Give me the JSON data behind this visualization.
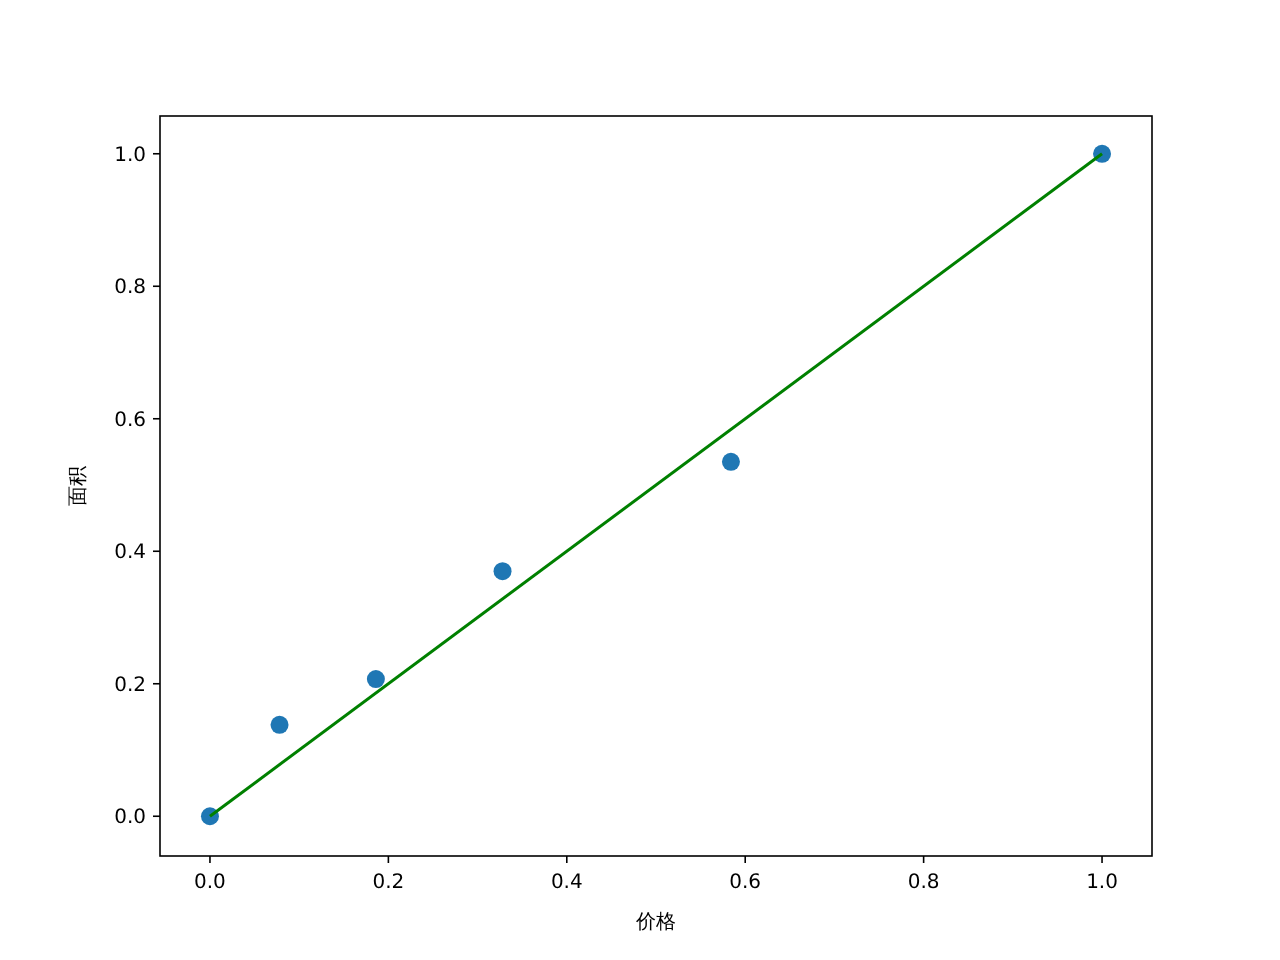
{
  "chart_data": {
    "type": "scatter",
    "xlabel": "价格",
    "ylabel": "面积",
    "xlim": [
      -0.056,
      1.056
    ],
    "ylim": [
      -0.06,
      1.057
    ],
    "xticks": [
      {
        "value": 0,
        "label": "0.0"
      },
      {
        "value": 0.2,
        "label": "0.2"
      },
      {
        "value": 0.4,
        "label": "0.4"
      },
      {
        "value": 0.6,
        "label": "0.6"
      },
      {
        "value": 0.8,
        "label": "0.8"
      },
      {
        "value": 1,
        "label": "1.0"
      }
    ],
    "yticks": [
      {
        "value": 0,
        "label": "0.0"
      },
      {
        "value": 0.2,
        "label": "0.2"
      },
      {
        "value": 0.4,
        "label": "0.4"
      },
      {
        "value": 0.6,
        "label": "0.6"
      },
      {
        "value": 0.8,
        "label": "0.8"
      },
      {
        "value": 1,
        "label": "1.0"
      }
    ],
    "grid": false,
    "series": [
      {
        "marker": "circle",
        "color": "#1f77b4",
        "x": [
          0,
          0.078,
          0.186,
          0.328,
          0.584,
          1
        ],
        "values": [
          0,
          0.138,
          0.207,
          0.37,
          0.535,
          1
        ]
      },
      {
        "type": "line",
        "marker": "none",
        "color": "#008000",
        "x": [
          0,
          1
        ],
        "values": [
          0,
          1
        ]
      }
    ]
  }
}
